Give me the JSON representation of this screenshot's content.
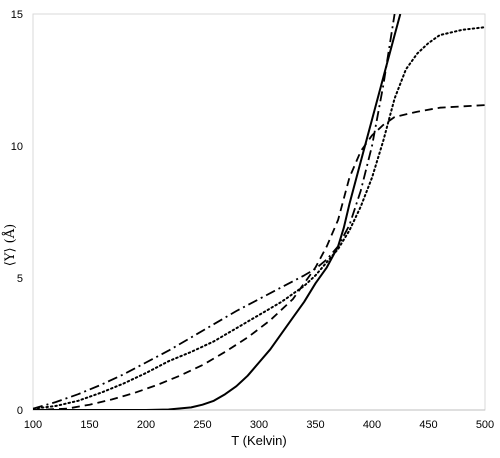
{
  "chart_data": {
    "type": "line",
    "title": "",
    "xlabel": "T (Kelvin)",
    "ylabel": "⟨Y⟩ (Å)",
    "xlim": [
      100,
      500
    ],
    "ylim": [
      0,
      15
    ],
    "xticks": [
      100,
      150,
      200,
      250,
      300,
      350,
      400,
      450,
      500
    ],
    "yticks": [
      0,
      5,
      10,
      15
    ],
    "grid": false,
    "legend": "none",
    "series": [
      {
        "style": "solid",
        "color": "#000000",
        "points": [
          [
            100,
            0
          ],
          [
            150,
            0
          ],
          [
            200,
            0
          ],
          [
            220,
            0.02
          ],
          [
            240,
            0.1
          ],
          [
            250,
            0.2
          ],
          [
            260,
            0.35
          ],
          [
            270,
            0.6
          ],
          [
            280,
            0.9
          ],
          [
            290,
            1.3
          ],
          [
            300,
            1.8
          ],
          [
            310,
            2.3
          ],
          [
            320,
            2.9
          ],
          [
            330,
            3.5
          ],
          [
            340,
            4.1
          ],
          [
            350,
            4.8
          ],
          [
            360,
            5.4
          ],
          [
            370,
            6.2
          ],
          [
            375,
            6.9
          ],
          [
            380,
            7.8
          ],
          [
            390,
            9.4
          ],
          [
            400,
            11.0
          ],
          [
            410,
            12.6
          ],
          [
            420,
            14.2
          ],
          [
            425,
            15.0
          ]
        ]
      },
      {
        "style": "dotted",
        "color": "#000000",
        "points": [
          [
            100,
            0.05
          ],
          [
            120,
            0.15
          ],
          [
            140,
            0.35
          ],
          [
            160,
            0.65
          ],
          [
            180,
            1.0
          ],
          [
            200,
            1.4
          ],
          [
            220,
            1.85
          ],
          [
            240,
            2.2
          ],
          [
            260,
            2.6
          ],
          [
            280,
            3.1
          ],
          [
            300,
            3.6
          ],
          [
            320,
            4.1
          ],
          [
            340,
            4.7
          ],
          [
            350,
            5.1
          ],
          [
            360,
            5.6
          ],
          [
            370,
            6.1
          ],
          [
            380,
            6.8
          ],
          [
            390,
            7.7
          ],
          [
            400,
            8.8
          ],
          [
            410,
            10.2
          ],
          [
            420,
            11.8
          ],
          [
            430,
            12.9
          ],
          [
            440,
            13.5
          ],
          [
            450,
            13.9
          ],
          [
            460,
            14.2
          ],
          [
            480,
            14.4
          ],
          [
            500,
            14.5
          ]
        ]
      },
      {
        "style": "dashed",
        "color": "#000000",
        "points": [
          [
            100,
            0
          ],
          [
            130,
            0.05
          ],
          [
            150,
            0.2
          ],
          [
            170,
            0.4
          ],
          [
            190,
            0.65
          ],
          [
            210,
            0.95
          ],
          [
            230,
            1.3
          ],
          [
            250,
            1.7
          ],
          [
            270,
            2.2
          ],
          [
            290,
            2.75
          ],
          [
            310,
            3.4
          ],
          [
            330,
            4.2
          ],
          [
            340,
            4.8
          ],
          [
            350,
            5.4
          ],
          [
            360,
            6.2
          ],
          [
            370,
            7.2
          ],
          [
            380,
            8.8
          ],
          [
            390,
            9.8
          ],
          [
            400,
            10.4
          ],
          [
            410,
            10.8
          ],
          [
            420,
            11.1
          ],
          [
            440,
            11.3
          ],
          [
            460,
            11.45
          ],
          [
            480,
            11.5
          ],
          [
            500,
            11.55
          ]
        ]
      },
      {
        "style": "dashdot",
        "color": "#000000",
        "points": [
          [
            100,
            0.05
          ],
          [
            120,
            0.3
          ],
          [
            140,
            0.6
          ],
          [
            160,
            0.95
          ],
          [
            180,
            1.35
          ],
          [
            200,
            1.8
          ],
          [
            220,
            2.25
          ],
          [
            240,
            2.75
          ],
          [
            260,
            3.25
          ],
          [
            280,
            3.75
          ],
          [
            300,
            4.2
          ],
          [
            320,
            4.65
          ],
          [
            340,
            5.1
          ],
          [
            350,
            5.35
          ],
          [
            360,
            5.7
          ],
          [
            370,
            6.2
          ],
          [
            380,
            7.0
          ],
          [
            390,
            8.3
          ],
          [
            400,
            10.0
          ],
          [
            410,
            12.3
          ],
          [
            420,
            15.0
          ]
        ]
      }
    ]
  }
}
